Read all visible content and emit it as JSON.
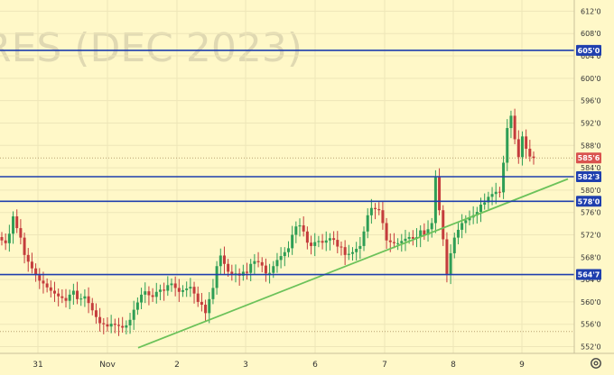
{
  "watermark": "RES (DEC 2023)",
  "settings_icon": "gear-icon",
  "colors": {
    "background": "#fff8c8",
    "up": "#2e9e55",
    "down": "#c43c3c",
    "level": "#1f3fae",
    "trend": "#6cc25a",
    "last_price_tag": "#d9534f"
  },
  "chart_data": {
    "type": "candlestick",
    "y_ticks": [
      "552'0",
      "556'0",
      "560'0",
      "564'0",
      "568'0",
      "572'0",
      "576'0",
      "580'0",
      "584'0",
      "588'0",
      "592'0",
      "596'0",
      "600'0",
      "604'0",
      "608'0",
      "612'0"
    ],
    "x_ticks": [
      "31",
      "Nov",
      "2",
      "3",
      "6",
      "7",
      "8",
      "9"
    ],
    "y_range": [
      550.8,
      614.0
    ],
    "levels": [
      {
        "label": "605'0",
        "value": 605.0
      },
      {
        "label": "582'3",
        "value": 582.4
      },
      {
        "label": "578'0",
        "value": 578.0
      },
      {
        "label": "564'7",
        "value": 564.9
      }
    ],
    "last_price": {
      "label": "585'6",
      "value": 585.75
    },
    "dotted_levels": [
      585.75,
      554.7
    ],
    "trendline": [
      {
        "x": 0.225,
        "y": 551.8
      },
      {
        "x": 0.925,
        "y": 582.0
      }
    ],
    "ohlc_closes": [
      571.0,
      570.5,
      572.2,
      575.3,
      573.2,
      571.5,
      568.4,
      567.2,
      566.0,
      564.8,
      563.8,
      563.3,
      562.6,
      562.0,
      561.5,
      561.0,
      560.7,
      560.2,
      561.3,
      562.0,
      560.5,
      560.6,
      561.0,
      559.8,
      558.5,
      557.3,
      556.2,
      556.0,
      555.6,
      556.1,
      555.9,
      555.7,
      555.4,
      555.8,
      556.8,
      558.6,
      559.9,
      561.3,
      561.9,
      561.2,
      560.9,
      561.8,
      562.2,
      562.0,
      563.0,
      563.3,
      562.5,
      561.8,
      562.1,
      562.4,
      562.7,
      561.5,
      560.0,
      559.5,
      558.0,
      560.5,
      562.5,
      566.4,
      568.3,
      566.8,
      565.4,
      565.0,
      565.1,
      564.7,
      565.4,
      565.2,
      566.8,
      567.3,
      567.1,
      566.5,
      565.1,
      565.2,
      566.4,
      567.5,
      568.2,
      568.9,
      569.6,
      572.0,
      573.5,
      573.7,
      572.6,
      570.6,
      570.0,
      570.7,
      570.9,
      570.6,
      571.0,
      571.4,
      571.1,
      569.9,
      569.8,
      568.4,
      568.6,
      568.9,
      569.5,
      570.0,
      572.6,
      575.5,
      576.8,
      576.6,
      576.4,
      574.1,
      571.0,
      570.7,
      570.5,
      570.5,
      570.9,
      571.3,
      571.6,
      571.3,
      571.6,
      572.8,
      572.0,
      573.0,
      574.1,
      582.3,
      576.4,
      571.2,
      565.0,
      568.7,
      571.5,
      572.9,
      574.1,
      574.6,
      575.1,
      575.5,
      576.1,
      577.4,
      577.8,
      578.8,
      579.3,
      579.7,
      579.6,
      584.9,
      591.1,
      593.3,
      589.1,
      585.9,
      589.6,
      587.4,
      586.0,
      585.75
    ]
  }
}
